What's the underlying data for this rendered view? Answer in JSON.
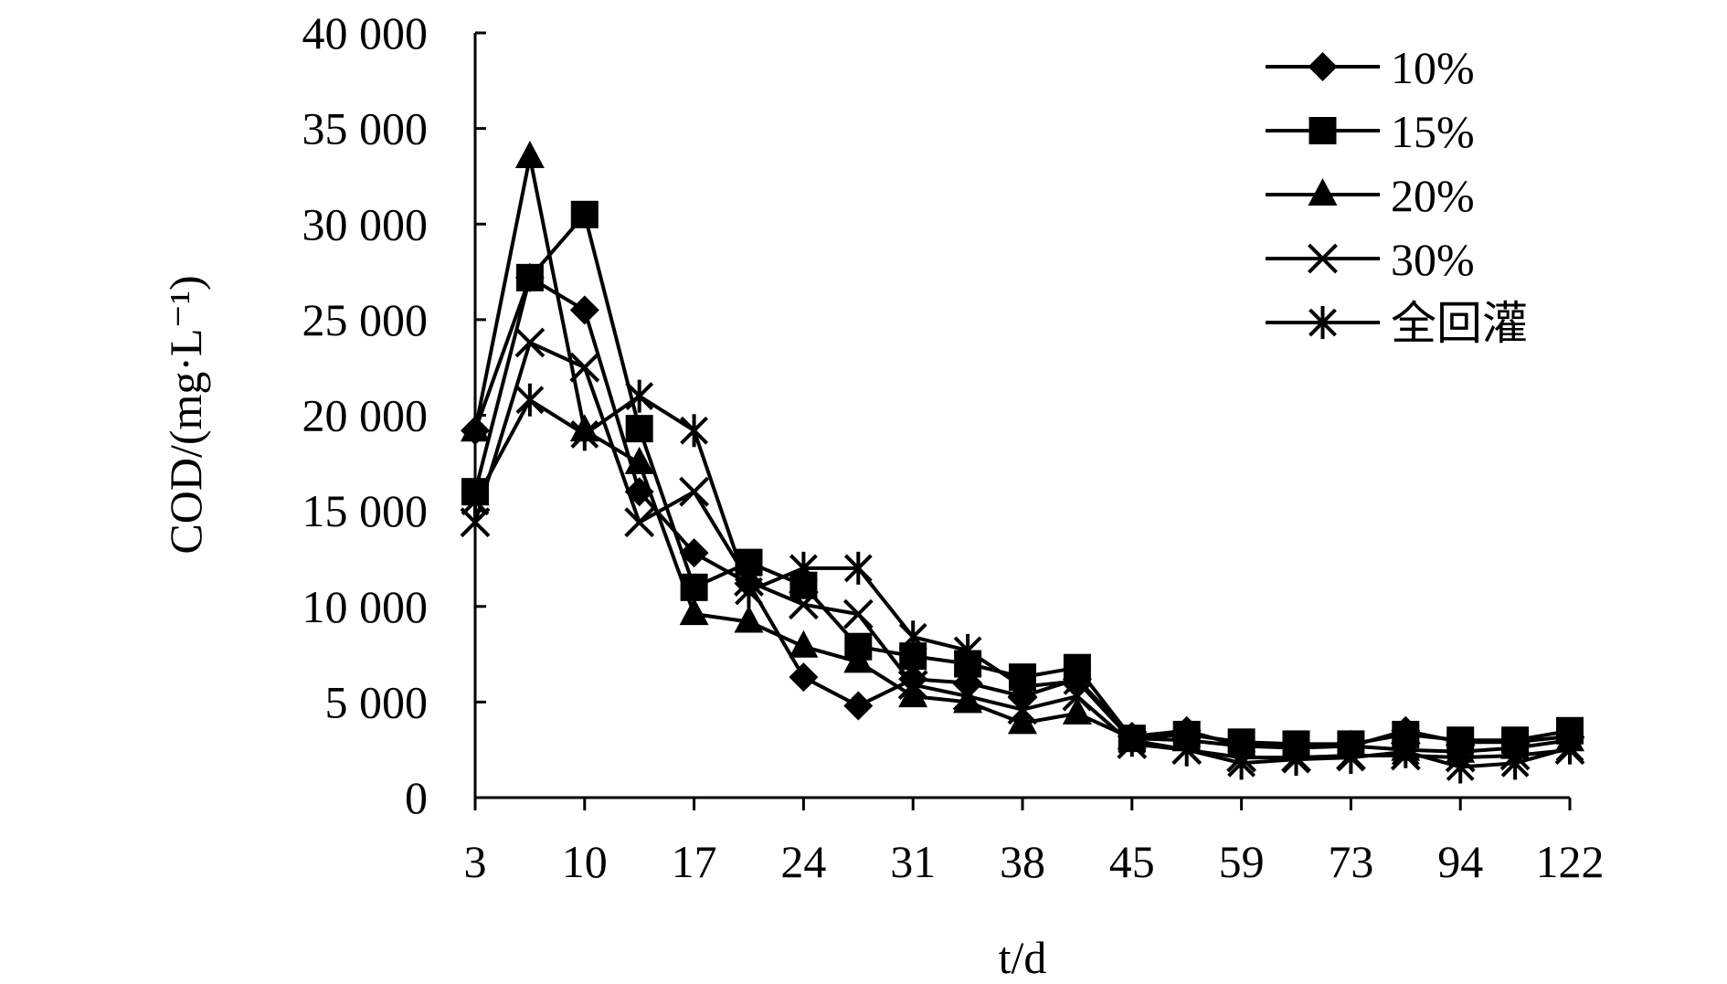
{
  "chart_data": {
    "type": "line",
    "xlabel": "t/d",
    "ylabel": "COD/(mg·L⁻¹)",
    "x": [
      3,
      6,
      10,
      13,
      17,
      20,
      24,
      27,
      31,
      34,
      38,
      41,
      45,
      52,
      59,
      66,
      73,
      80,
      94,
      108,
      122
    ],
    "x_tick_labels": [
      "3",
      "10",
      "17",
      "24",
      "31",
      "38",
      "45",
      "59",
      "73",
      "94",
      "122"
    ],
    "y_tick_labels": [
      "0",
      "5 000",
      "10 000",
      "15 000",
      "20 000",
      "25 000",
      "30 000",
      "35 000",
      "40 000"
    ],
    "ylim": [
      0,
      40000
    ],
    "grid": false,
    "legend_position": "top-right",
    "series": [
      {
        "name": "10%",
        "marker": "diamond",
        "values": [
          19200,
          27200,
          25500,
          16000,
          12800,
          11200,
          6300,
          4800,
          6200,
          6000,
          5300,
          6200,
          3200,
          3500,
          2700,
          2700,
          2700,
          3500,
          2900,
          2900,
          3200
        ]
      },
      {
        "name": "15%",
        "marker": "square",
        "values": [
          16000,
          27200,
          30500,
          19300,
          11000,
          12300,
          11100,
          7900,
          7400,
          7000,
          6300,
          6800,
          3100,
          3300,
          2900,
          2800,
          2800,
          3300,
          3000,
          3000,
          3500
        ]
      },
      {
        "name": "20%",
        "marker": "triangle",
        "values": [
          19200,
          33500,
          19200,
          17500,
          9600,
          9200,
          7900,
          7100,
          5300,
          5000,
          3900,
          4400,
          3100,
          3000,
          2700,
          2600,
          2700,
          2500,
          2400,
          2600,
          3000
        ]
      },
      {
        "name": "30%",
        "marker": "x",
        "values": [
          14400,
          23800,
          22500,
          14400,
          16000,
          11300,
          10100,
          9600,
          5900,
          5300,
          4600,
          5300,
          2800,
          2500,
          2100,
          2100,
          2200,
          2200,
          2100,
          2200,
          2500
        ]
      },
      {
        "name": "全回灌",
        "marker": "asterisk",
        "values": [
          15500,
          20800,
          19000,
          21000,
          19200,
          10800,
          12000,
          12000,
          8400,
          7700,
          5800,
          6100,
          3000,
          2500,
          1800,
          2000,
          2100,
          2400,
          1600,
          1800,
          2600
        ]
      }
    ]
  }
}
